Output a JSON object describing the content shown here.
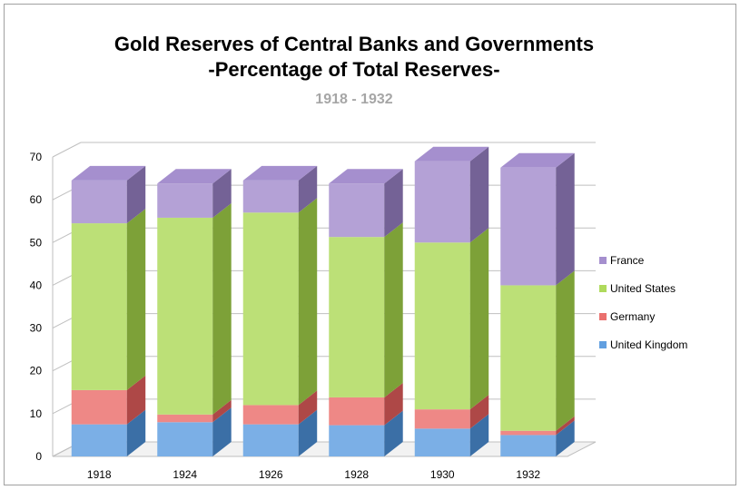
{
  "chart_data": {
    "type": "bar",
    "stacked": true,
    "three_d": true,
    "title": "Gold Reserves of Central Banks and Governments",
    "title_line2": "-Percentage of Total Reserves-",
    "subtitle": "1918 - 1932",
    "categories": [
      "1918",
      "1924",
      "1926",
      "1928",
      "1930",
      "1932"
    ],
    "ylim": [
      0,
      70
    ],
    "yticks": [
      "0",
      "10",
      "20",
      "30",
      "40",
      "50",
      "60",
      "70"
    ],
    "grid": true,
    "legend_position": "right",
    "series": [
      {
        "name": "United Kingdom",
        "color": "#4f94dd",
        "values": [
          7.5,
          8.0,
          7.5,
          7.3,
          6.5,
          5.0
        ]
      },
      {
        "name": "Germany",
        "color": "#e8605e",
        "values": [
          8.0,
          1.8,
          4.5,
          6.5,
          4.5,
          1.0
        ]
      },
      {
        "name": "United States",
        "color": "#a6d64a",
        "values": [
          39.0,
          46.0,
          45.0,
          37.5,
          39.0,
          34.0
        ]
      },
      {
        "name": "France",
        "color": "#9b82c8",
        "values": [
          10.0,
          8.0,
          7.5,
          12.5,
          19.0,
          27.5
        ]
      }
    ]
  }
}
